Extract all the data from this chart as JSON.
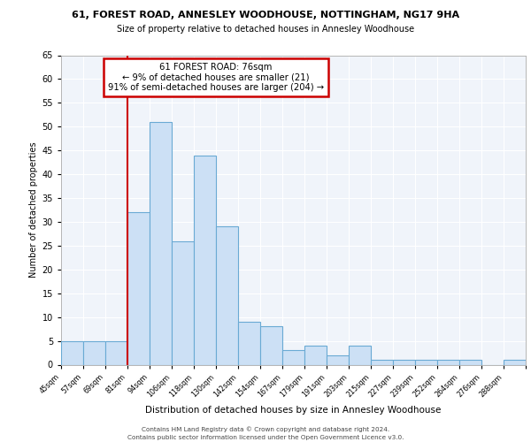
{
  "title1": "61, FOREST ROAD, ANNESLEY WOODHOUSE, NOTTINGHAM, NG17 9HA",
  "title2": "Size of property relative to detached houses in Annesley Woodhouse",
  "xlabel": "Distribution of detached houses by size in Annesley Woodhouse",
  "ylabel": "Number of detached properties",
  "bin_labels": [
    "45sqm",
    "57sqm",
    "69sqm",
    "81sqm",
    "94sqm",
    "106sqm",
    "118sqm",
    "130sqm",
    "142sqm",
    "154sqm",
    "167sqm",
    "179sqm",
    "191sqm",
    "203sqm",
    "215sqm",
    "227sqm",
    "239sqm",
    "252sqm",
    "264sqm",
    "276sqm",
    "288sqm"
  ],
  "bar_heights": [
    5,
    5,
    5,
    32,
    51,
    26,
    44,
    29,
    9,
    8,
    3,
    4,
    2,
    4,
    1,
    1,
    1,
    1,
    1,
    0,
    1
  ],
  "bar_color": "#cce0f5",
  "bar_edge_color": "#6aaad4",
  "ylim": [
    0,
    65
  ],
  "yticks": [
    0,
    5,
    10,
    15,
    20,
    25,
    30,
    35,
    40,
    45,
    50,
    55,
    60,
    65
  ],
  "annotation_title": "61 FOREST ROAD: 76sqm",
  "annotation_line1": "← 9% of detached houses are smaller (21)",
  "annotation_line2": "91% of semi-detached houses are larger (204) →",
  "annotation_box_color": "#ffffff",
  "annotation_border_color": "#cc0000",
  "vline_color": "#cc0000",
  "vline_x": 3.0,
  "footer1": "Contains HM Land Registry data © Crown copyright and database right 2024.",
  "footer2": "Contains public sector information licensed under the Open Government Licence v3.0.",
  "bg_color": "#f0f4fa"
}
